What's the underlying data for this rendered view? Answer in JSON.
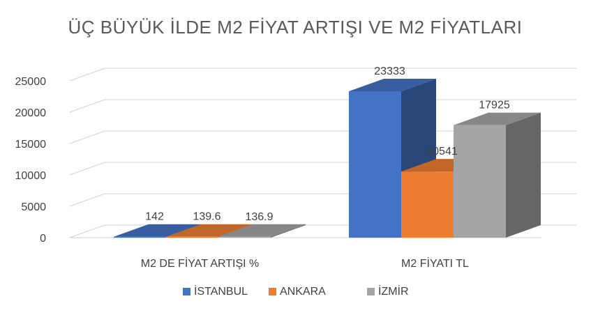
{
  "chart_data": {
    "type": "bar",
    "title": "ÜÇ BÜYÜK İLDE M2 FİYAT ARTIŞI VE M2 FİYATLARI",
    "xlabel": "",
    "ylabel": "",
    "categories": [
      "M2 DE FİYAT ARTIŞI %",
      "M2 FİYATI TL"
    ],
    "series": [
      {
        "name": "İSTANBUL",
        "values": [
          142,
          23333
        ],
        "labels": [
          "142",
          "23333"
        ],
        "color": "#4472C4"
      },
      {
        "name": "ANKARA",
        "values": [
          139.6,
          10541
        ],
        "labels": [
          "139.6",
          "10541"
        ],
        "color": "#ED7D31"
      },
      {
        "name": "İZMİR",
        "values": [
          136.9,
          17925
        ],
        "labels": [
          "136.9",
          "17925"
        ],
        "color": "#A5A5A5"
      }
    ],
    "ylim": [
      0,
      25000
    ],
    "yticks": [
      "0",
      "5000",
      "10000",
      "15000",
      "20000",
      "25000"
    ],
    "grid": true,
    "three_d": true,
    "legend_position": "bottom",
    "colors": {
      "grid": "#D9D9D9",
      "title": "#595959",
      "text": "#404040"
    }
  }
}
